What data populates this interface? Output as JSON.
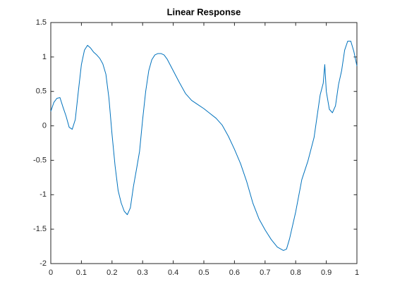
{
  "chart_data": {
    "type": "line",
    "title": "Linear Response",
    "x": [
      0,
      0.01,
      0.02,
      0.03,
      0.04,
      0.05,
      0.06,
      0.07,
      0.08,
      0.09,
      0.1,
      0.11,
      0.12,
      0.13,
      0.14,
      0.15,
      0.16,
      0.17,
      0.18,
      0.19,
      0.2,
      0.21,
      0.22,
      0.23,
      0.24,
      0.25,
      0.26,
      0.27,
      0.28,
      0.29,
      0.3,
      0.31,
      0.32,
      0.33,
      0.34,
      0.35,
      0.36,
      0.37,
      0.38,
      0.4,
      0.42,
      0.44,
      0.46,
      0.48,
      0.5,
      0.52,
      0.54,
      0.56,
      0.58,
      0.6,
      0.62,
      0.64,
      0.66,
      0.68,
      0.7,
      0.72,
      0.74,
      0.76,
      0.77,
      0.78,
      0.8,
      0.82,
      0.84,
      0.86,
      0.88,
      0.89,
      0.895,
      0.9,
      0.91,
      0.92,
      0.93,
      0.94,
      0.95,
      0.96,
      0.97,
      0.98,
      0.99,
      1.0
    ],
    "series": [
      {
        "color": "#0072bd",
        "values": [
          0.21,
          0.34,
          0.4,
          0.41,
          0.27,
          0.14,
          -0.02,
          -0.05,
          0.09,
          0.5,
          0.89,
          1.1,
          1.17,
          1.13,
          1.07,
          1.03,
          0.98,
          0.9,
          0.75,
          0.4,
          -0.12,
          -0.58,
          -0.94,
          -1.12,
          -1.24,
          -1.29,
          -1.19,
          -0.88,
          -0.63,
          -0.37,
          0.09,
          0.5,
          0.8,
          0.96,
          1.03,
          1.05,
          1.05,
          1.03,
          0.97,
          0.8,
          0.63,
          0.47,
          0.37,
          0.31,
          0.25,
          0.18,
          0.11,
          0.01,
          -0.15,
          -0.34,
          -0.55,
          -0.81,
          -1.12,
          -1.35,
          -1.51,
          -1.65,
          -1.76,
          -1.81,
          -1.79,
          -1.64,
          -1.25,
          -0.78,
          -0.51,
          -0.17,
          0.45,
          0.62,
          0.89,
          0.5,
          0.24,
          0.19,
          0.29,
          0.6,
          0.8,
          1.1,
          1.23,
          1.23,
          1.08,
          0.87
        ]
      }
    ],
    "xlim": [
      0,
      1
    ],
    "xticks": [
      0,
      0.1,
      0.2,
      0.3,
      0.4,
      0.5,
      0.6,
      0.7,
      0.8,
      0.9,
      1
    ],
    "ylim": [
      -2,
      1.5
    ],
    "yticks": [
      -2,
      -1.5,
      -1,
      -0.5,
      0,
      0.5,
      1,
      1.5
    ],
    "grid": false
  }
}
